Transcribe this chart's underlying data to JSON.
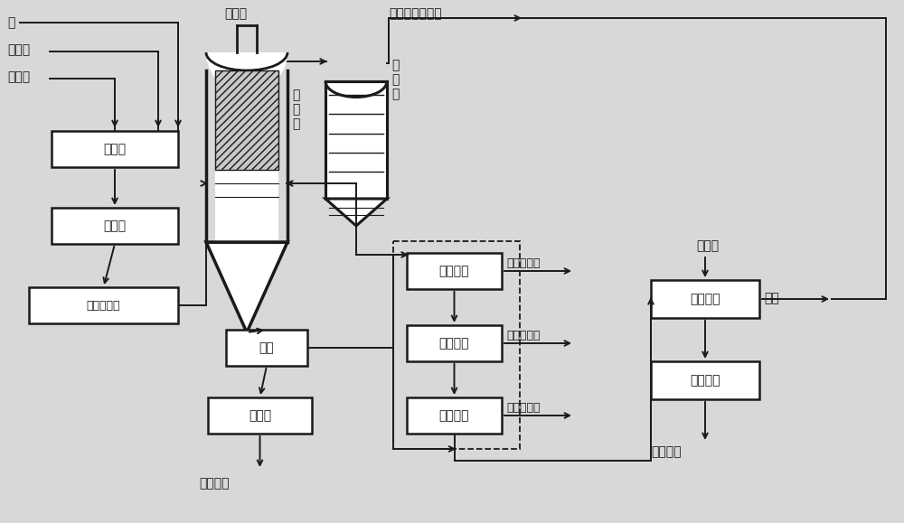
{
  "bg_color": "#d8d8d8",
  "line_color": "#1a1a1a",
  "box_color": "#ffffff",
  "font_color": "#1a1a1a",
  "font_size": 10,
  "lw": 1.4,
  "boxes": {
    "moji": [
      57,
      145,
      140,
      40
    ],
    "mjc": [
      57,
      230,
      140,
      40
    ],
    "pump": [
      32,
      318,
      165,
      40
    ],
    "lockhopper": [
      250,
      365,
      90,
      40
    ],
    "crusher": [
      230,
      440,
      115,
      40
    ],
    "hpflash": [
      450,
      280,
      105,
      40
    ],
    "lpflash": [
      450,
      360,
      105,
      40
    ],
    "vacflash": [
      450,
      440,
      105,
      40
    ],
    "settle": [
      720,
      310,
      120,
      42
    ],
    "vacfilter": [
      720,
      400,
      120,
      42
    ]
  },
  "box_labels": {
    "moji": "磨煤机",
    "mjc": "煤浆槽",
    "pump": "高压煤浆泵",
    "lockhopper": "锁斗",
    "crusher": "捞渣机",
    "hpflash": "高压闪蒸",
    "lpflash": "低压闪蒸",
    "vacflash": "真空闪蒸",
    "settle": "沉降系统",
    "vacfilter": "真空过滤"
  }
}
